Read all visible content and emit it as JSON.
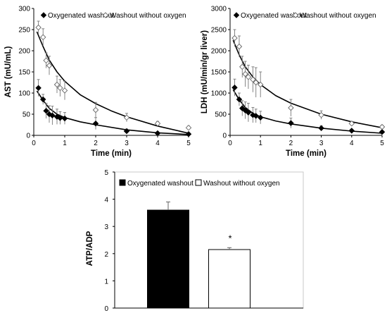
{
  "chart_data": [
    {
      "type": "scatter",
      "xlabel": "Time (min)",
      "ylabel": "AST (mU/mL)",
      "xlim": [
        0,
        5
      ],
      "ylim": [
        0,
        300
      ],
      "x_ticks": [
        "0",
        "1",
        "2",
        "3",
        "4",
        "5"
      ],
      "y_ticks": [
        "0",
        "50",
        "100",
        "150",
        "200",
        "250",
        "300"
      ],
      "legend": {
        "placement": "top"
      },
      "series": [
        {
          "name": "Oxygenated washout",
          "marker": "filled-diamond",
          "x": [
            0.15,
            0.3,
            0.4,
            0.5,
            0.6,
            0.75,
            0.85,
            1,
            2,
            3,
            4,
            5
          ],
          "y": [
            112,
            85,
            58,
            50,
            47,
            44,
            41,
            40,
            28,
            10,
            5,
            3
          ],
          "err": [
            20,
            12,
            18,
            20,
            22,
            18,
            15,
            14,
            14,
            5,
            3,
            2
          ],
          "fit": [
            [
              0.1,
              105
            ],
            [
              0.3,
              83
            ],
            [
              0.5,
              64
            ],
            [
              0.75,
              50
            ],
            [
              1,
              42
            ],
            [
              1.5,
              32
            ],
            [
              2,
              25
            ],
            [
              3,
              13
            ],
            [
              4,
              6
            ],
            [
              5,
              2
            ]
          ]
        },
        {
          "name": "Washout without oxygen",
          "marker": "open-diamond",
          "x": [
            0.15,
            0.3,
            0.4,
            0.5,
            0.75,
            0.85,
            1,
            2,
            3,
            4,
            5
          ],
          "y": [
            255,
            232,
            177,
            165,
            120,
            112,
            106,
            60,
            42,
            28,
            18
          ],
          "err": [
            15,
            20,
            18,
            22,
            20,
            20,
            22,
            18,
            10,
            5,
            4
          ],
          "fit": [
            [
              0.1,
              245
            ],
            [
              0.3,
              210
            ],
            [
              0.5,
              178
            ],
            [
              0.75,
              150
            ],
            [
              1,
              128
            ],
            [
              1.5,
              96
            ],
            [
              2,
              75
            ],
            [
              2.5,
              58
            ],
            [
              3,
              44
            ],
            [
              4,
              22
            ],
            [
              5,
              5
            ]
          ]
        }
      ]
    },
    {
      "type": "scatter",
      "xlabel": "Time (min)",
      "ylabel": "LDH (mU/min/gr liver)",
      "xlim": [
        0,
        5
      ],
      "ylim": [
        0,
        3000
      ],
      "x_ticks": [
        "0",
        "1",
        "2",
        "3",
        "4",
        "5"
      ],
      "y_ticks": [
        "0",
        "500",
        "1000",
        "1500",
        "2000",
        "2500",
        "3000"
      ],
      "legend": {
        "placement": "top"
      },
      "series": [
        {
          "name": "Oxygenated washout",
          "marker": "filled-diamond",
          "x": [
            0.15,
            0.3,
            0.4,
            0.5,
            0.6,
            0.75,
            0.85,
            1,
            2,
            3,
            4,
            5
          ],
          "y": [
            1130,
            850,
            640,
            590,
            540,
            480,
            460,
            420,
            290,
            170,
            110,
            80
          ],
          "err": [
            200,
            150,
            180,
            200,
            220,
            180,
            160,
            150,
            120,
            60,
            30,
            20
          ],
          "fit": [
            [
              0.1,
              1080
            ],
            [
              0.3,
              840
            ],
            [
              0.5,
              660
            ],
            [
              0.75,
              520
            ],
            [
              1,
              440
            ],
            [
              1.5,
              340
            ],
            [
              2,
              270
            ],
            [
              3,
              170
            ],
            [
              4,
              100
            ],
            [
              5,
              50
            ]
          ]
        },
        {
          "name": "Washout without oxygen",
          "marker": "open-diamond",
          "x": [
            0.15,
            0.3,
            0.4,
            0.5,
            0.6,
            0.75,
            0.85,
            1,
            2,
            3,
            4,
            5
          ],
          "y": [
            2300,
            2100,
            1620,
            1450,
            1380,
            1320,
            1250,
            1200,
            650,
            480,
            280,
            200
          ],
          "err": [
            200,
            250,
            250,
            300,
            280,
            300,
            350,
            300,
            200,
            100,
            50,
            40
          ],
          "fit": [
            [
              0.1,
              2250
            ],
            [
              0.3,
              1900
            ],
            [
              0.5,
              1620
            ],
            [
              0.75,
              1380
            ],
            [
              1,
              1200
            ],
            [
              1.5,
              940
            ],
            [
              2,
              760
            ],
            [
              3,
              500
            ],
            [
              4,
              320
            ],
            [
              5,
              180
            ]
          ]
        }
      ]
    },
    {
      "type": "bar",
      "ylabel": "ATP/ADP",
      "ylim": [
        0,
        5
      ],
      "y_ticks": [
        "0",
        "1",
        "2",
        "3",
        "4",
        "5"
      ],
      "legend": {
        "placement": "top"
      },
      "series": [
        {
          "name": "Oxygenated washout",
          "value": 3.6,
          "err": 0.3,
          "color": "#000000"
        },
        {
          "name": "Washout without oxygen",
          "value": 2.15,
          "err": 0.07,
          "color": "#ffffff"
        }
      ],
      "annotations": [
        "*"
      ]
    }
  ]
}
